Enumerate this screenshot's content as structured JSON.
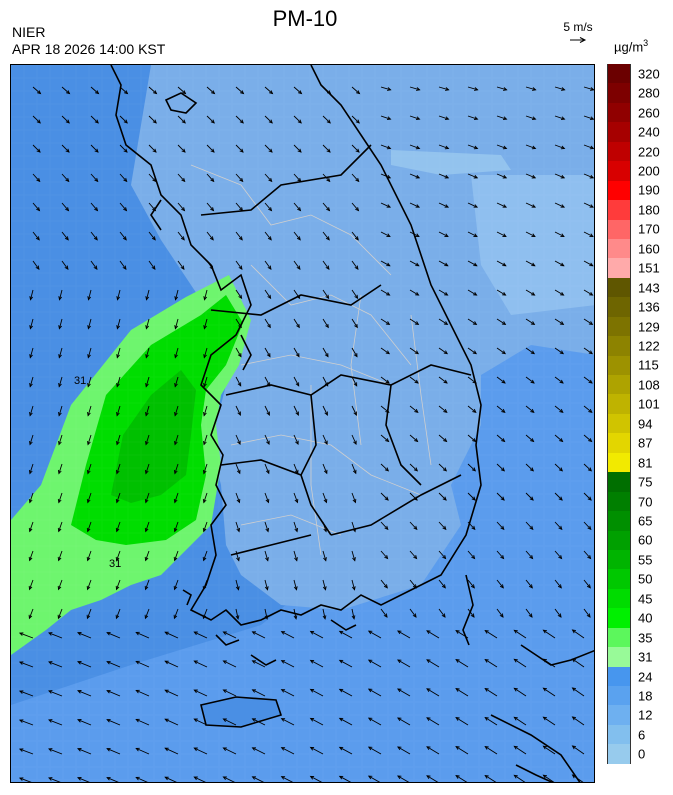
{
  "title": "PM-10",
  "agency": "NIER",
  "timestamp": "APR 18 2026 14:00 KST",
  "wind_reference": {
    "label": "5 m/s"
  },
  "unit": {
    "base": "µg/m",
    "exponent": "3"
  },
  "legend": {
    "labels": [
      "320",
      "280",
      "260",
      "240",
      "220",
      "200",
      "190",
      "180",
      "170",
      "160",
      "151",
      "143",
      "136",
      "129",
      "122",
      "115",
      "108",
      "101",
      "94",
      "87",
      "81",
      "75",
      "70",
      "65",
      "60",
      "55",
      "50",
      "45",
      "40",
      "35",
      "31",
      "24",
      "18",
      "12",
      "6",
      "0"
    ],
    "colors": [
      "#6b0000",
      "#7d0000",
      "#900000",
      "#a60000",
      "#bf0000",
      "#d80000",
      "#ff0000",
      "#ff3b3b",
      "#ff6666",
      "#ff8a8a",
      "#ffaaaa",
      "#5f5600",
      "#6e6500",
      "#7d7300",
      "#8d8300",
      "#9d9200",
      "#aea300",
      "#bfb300",
      "#d0c400",
      "#e3d600",
      "#f2ea00",
      "#006f00",
      "#007f00",
      "#008f00",
      "#00a000",
      "#00b400",
      "#00c800",
      "#00dc00",
      "#00f000",
      "#5cf75c",
      "#98fa98",
      "#4796ee",
      "#5aa2ef",
      "#6eb0f0",
      "#82bfee",
      "#97cbed"
    ]
  },
  "map": {
    "isoline_labels": [
      "31",
      "31"
    ],
    "colors": {
      "background": "#4a8fe4",
      "band_mid": "#5b9ced",
      "land": "#7aaee9",
      "band_35": "#6ef56e",
      "band_40": "#00dd00",
      "band_45": "#00c000",
      "coast": "#000000",
      "boundary": "#cfcfcf"
    }
  }
}
